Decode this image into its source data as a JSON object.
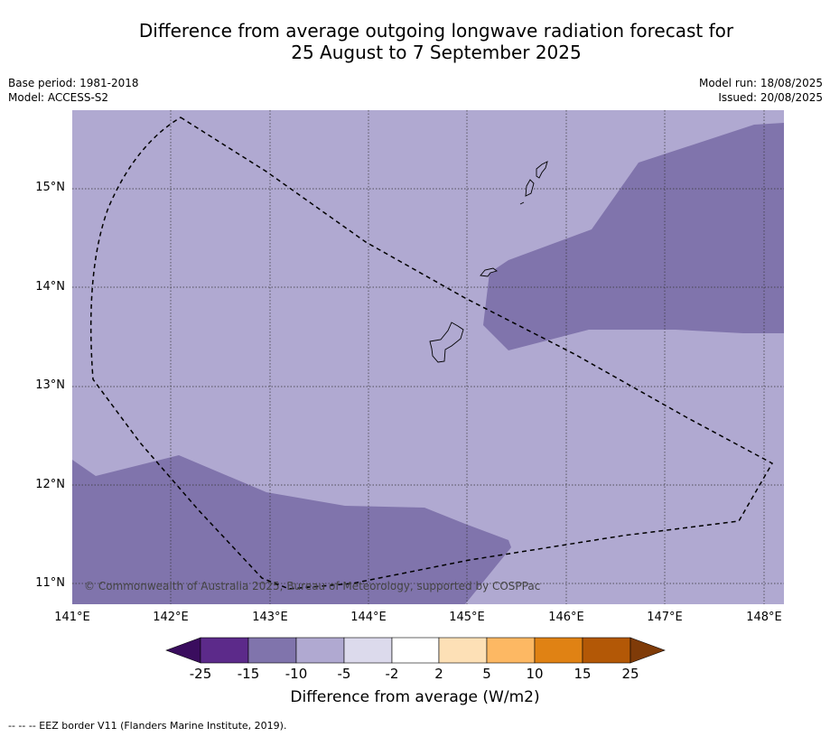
{
  "title_line1": "Difference from average outgoing longwave radiation forecast for",
  "title_line2": "25 August to 7 September 2025",
  "base_period": "Base period: 1981-2018",
  "model": "Model: ACCESS-S2",
  "model_run": "Model run: 18/08/2025",
  "issued": "Issued: 20/08/2025",
  "copyright": "© Commonwealth of Australia 2025, Bureau of Meteorology, supported by COSPPac",
  "footnote": "--  --  -- EEZ border V11 (Flanders Marine Institute, 2019).",
  "colorbar_title": "Difference from average (W/m2)",
  "lat_labels": [
    "15°N",
    "14°N",
    "13°N",
    "12°N",
    "11°N"
  ],
  "lon_labels": [
    "141°E",
    "142°E",
    "143°E",
    "144°E",
    "145°E",
    "146°E",
    "147°E",
    "148°E"
  ],
  "colorbar_ticks": [
    "-25",
    "-15",
    "-10",
    "-5",
    "-2",
    "2",
    "5",
    "10",
    "15",
    "25"
  ],
  "colors": {
    "below_m25": "#3a0d5e",
    "m25_m15": "#5c2a8a",
    "m15_m10": "#8074ac",
    "m10_m5": "#b0a9d1",
    "m5_m2": "#dcdaec",
    "m2_2": "#ffffff",
    "p2_5": "#fde0b6",
    "p5_10": "#fdb863",
    "p10_15": "#e08214",
    "p15_25": "#b35806",
    "above_25": "#7f3b08"
  }
}
